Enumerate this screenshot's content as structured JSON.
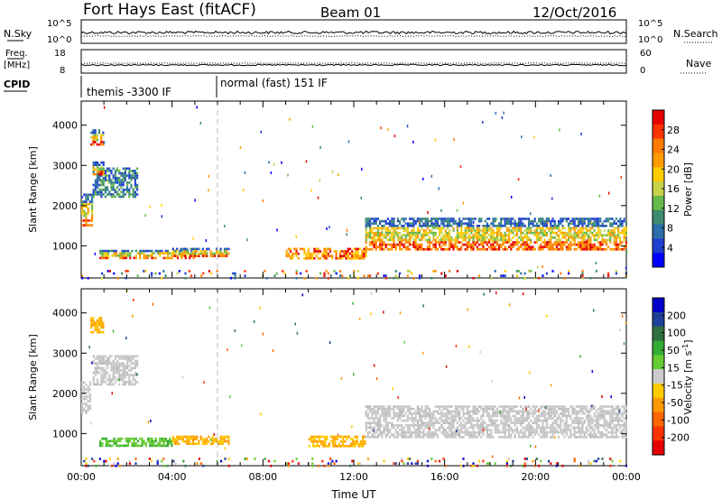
{
  "header": {
    "station": "Fort Hays East (fitACF)",
    "beam": "Beam 01",
    "date": "12/Oct/2016"
  },
  "panels": {
    "nsky_label": "N.Sky",
    "nsearch_label": "N.Search",
    "freq_label_1": "Freq.",
    "freq_label_2": "[MHz]",
    "nave_label": "Nave",
    "cpid_label": "CPID",
    "nsky_ticks": [
      "10^5",
      "10^0"
    ],
    "nsearch_ticks": [
      "10^5",
      "10^0"
    ],
    "freq_ticks": [
      "18",
      "8"
    ],
    "nave_ticks": [
      "60",
      "0"
    ],
    "cpid_segments": [
      {
        "label": "themis -3300 IF",
        "start_hour": 0,
        "end_hour": 6
      },
      {
        "label": "normal (fast) 151 IF",
        "start_hour": 6,
        "end_hour": 24
      }
    ]
  },
  "chart_data": [
    {
      "type": "heatmap",
      "name": "power",
      "xlabel": "",
      "ylabel": "Slant Range [km]",
      "xlim": [
        0,
        24
      ],
      "ylim": [
        200,
        4600
      ],
      "yticks": [
        1000,
        2000,
        3000,
        4000
      ],
      "colorbar": {
        "label": "Power [dB]",
        "ticks": [
          "28",
          "24",
          "20",
          "16",
          "12",
          "8",
          "4"
        ],
        "colors": [
          "#e60000",
          "#ff3300",
          "#ff7a00",
          "#ff9a00",
          "#ffcc00",
          "#c8d24a",
          "#66b84a",
          "#3d8a6e",
          "#2b6ea8",
          "#1f3fcf",
          "#0000ff"
        ]
      },
      "echo_regions": [
        {
          "t0": 0.0,
          "t1": 0.5,
          "r0": 1500,
          "r1": 2300,
          "level": "mixed"
        },
        {
          "t0": 0.4,
          "t1": 1.0,
          "r0": 3500,
          "r1": 3900,
          "level": "mixed"
        },
        {
          "t0": 0.5,
          "t1": 2.5,
          "r0": 2200,
          "r1": 2950,
          "level": "low"
        },
        {
          "t0": 0.5,
          "t1": 1.0,
          "r0": 2800,
          "r1": 3100,
          "level": "mid"
        },
        {
          "t0": 0.8,
          "t1": 5.0,
          "r0": 700,
          "r1": 900,
          "level": "mid"
        },
        {
          "t0": 4.0,
          "t1": 6.5,
          "r0": 750,
          "r1": 950,
          "level": "mid"
        },
        {
          "t0": 9.0,
          "t1": 12.5,
          "r0": 700,
          "r1": 950,
          "level": "high"
        },
        {
          "t0": 12.5,
          "t1": 24.0,
          "r0": 900,
          "r1": 1700,
          "level": "mid"
        },
        {
          "t0": 0.0,
          "t1": 24.0,
          "r0": 200,
          "r1": 400,
          "level": "sparse"
        }
      ]
    },
    {
      "type": "heatmap",
      "name": "velocity",
      "xlabel": "Time UT",
      "ylabel": "Slant Range [km]",
      "xlim": [
        0,
        24
      ],
      "ylim": [
        200,
        4600
      ],
      "yticks": [
        1000,
        2000,
        3000,
        4000
      ],
      "xticks": [
        "00:00",
        "04:00",
        "08:00",
        "12:00",
        "16:00",
        "20:00",
        "00:00"
      ],
      "colorbar": {
        "label": "Velocity [m s^-1]",
        "ticks": [
          "200",
          "100",
          "50",
          "15",
          "-15",
          "-50",
          "-100",
          "-200"
        ],
        "colors": [
          "#0000cc",
          "#1f3f99",
          "#2f6f3f",
          "#33aa33",
          "#66cc33",
          "#cccccc",
          "#ffcc00",
          "#ff9900",
          "#ff6600",
          "#ff3300",
          "#e60000"
        ]
      },
      "echo_regions": [
        {
          "t0": 0.0,
          "t1": 0.4,
          "r0": 1500,
          "r1": 2300,
          "level": "ground"
        },
        {
          "t0": 0.4,
          "t1": 1.0,
          "r0": 3500,
          "r1": 3900,
          "level": "away"
        },
        {
          "t0": 0.5,
          "t1": 2.5,
          "r0": 2200,
          "r1": 2950,
          "level": "ground"
        },
        {
          "t0": 0.8,
          "t1": 4.0,
          "r0": 700,
          "r1": 900,
          "level": "toward"
        },
        {
          "t0": 4.0,
          "t1": 6.5,
          "r0": 750,
          "r1": 950,
          "level": "away"
        },
        {
          "t0": 10.0,
          "t1": 12.5,
          "r0": 700,
          "r1": 950,
          "level": "away"
        },
        {
          "t0": 12.5,
          "t1": 24.0,
          "r0": 900,
          "r1": 1700,
          "level": "ground"
        },
        {
          "t0": 0.0,
          "t1": 24.0,
          "r0": 200,
          "r1": 400,
          "level": "sparse"
        }
      ]
    }
  ]
}
